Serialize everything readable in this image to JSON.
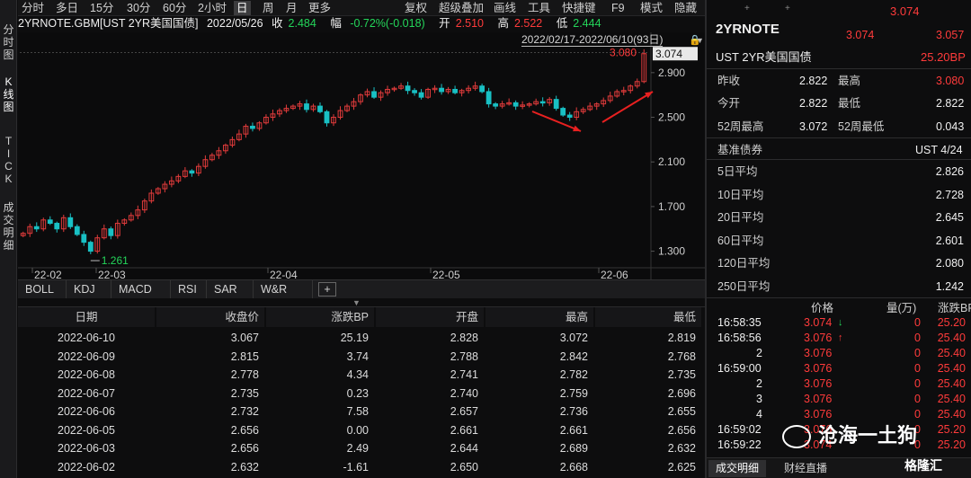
{
  "left_tabs": [
    "分时图",
    "K线图",
    "TICK",
    "成交明细"
  ],
  "toolbar": {
    "periods": [
      "分时",
      "多日",
      "15分",
      "30分",
      "60分",
      "2小时",
      "日",
      "周",
      "月",
      "更多"
    ],
    "selected": "日",
    "right": [
      "复权",
      "超级叠加",
      "画线",
      "工具",
      "快捷键",
      "F9",
      "模式",
      "隐藏"
    ]
  },
  "info": {
    "symbol": "2YRNOTE.GBM[UST 2YR美国国债]",
    "date": "2022/05/26",
    "close_label": "收",
    "close": "2.484",
    "chg_label": "幅",
    "chg": "-0.72%(-0.018)",
    "open_label": "开",
    "open": "2.510",
    "high_label": "高",
    "high": "2.522",
    "low_label": "低",
    "low": "2.444"
  },
  "chart_data": {
    "type": "candlestick",
    "range": "2022/02/17-2022/06/10(93日)",
    "y_ticks": [
      "2.900",
      "2.500",
      "2.100",
      "1.700",
      "1.300"
    ],
    "x_ticks": [
      "22-02",
      "22-03",
      "22-04",
      "22-05",
      "22-06"
    ],
    "last_price": "3.074",
    "ref_price": "3.080",
    "low_marker": "1.261",
    "closes": [
      1.46,
      1.52,
      1.5,
      1.58,
      1.55,
      1.5,
      1.6,
      1.52,
      1.45,
      1.38,
      1.3,
      1.42,
      1.5,
      1.44,
      1.55,
      1.58,
      1.62,
      1.67,
      1.75,
      1.82,
      1.86,
      1.9,
      1.93,
      1.97,
      2.02,
      2.0,
      2.06,
      2.12,
      2.16,
      2.2,
      2.25,
      2.3,
      2.35,
      2.42,
      2.4,
      2.45,
      2.5,
      2.53,
      2.56,
      2.58,
      2.6,
      2.62,
      2.57,
      2.6,
      2.55,
      2.45,
      2.5,
      2.56,
      2.6,
      2.64,
      2.7,
      2.73,
      2.68,
      2.72,
      2.75,
      2.76,
      2.78,
      2.74,
      2.72,
      2.68,
      2.75,
      2.76,
      2.73,
      2.75,
      2.72,
      2.74,
      2.76,
      2.78,
      2.73,
      2.62,
      2.6,
      2.62,
      2.63,
      2.6,
      2.61,
      2.62,
      2.64,
      2.63,
      2.66,
      2.58,
      2.52,
      2.5,
      2.55,
      2.57,
      2.6,
      2.62,
      2.65,
      2.69,
      2.73,
      2.74,
      2.78,
      2.82,
      3.07
    ]
  },
  "indicators": [
    "BOLL",
    "KDJ",
    "MACD",
    "RSI",
    "SAR",
    "W&R",
    "+"
  ],
  "table": {
    "headers": [
      "日期",
      "收盘价",
      "涨跌BP",
      "开盘",
      "最高",
      "最低"
    ],
    "rows": [
      [
        "2022-06-10",
        "3.067",
        "25.19",
        "2.828",
        "3.072",
        "2.819"
      ],
      [
        "2022-06-09",
        "2.815",
        "3.74",
        "2.788",
        "2.842",
        "2.768"
      ],
      [
        "2022-06-08",
        "2.778",
        "4.34",
        "2.741",
        "2.782",
        "2.735"
      ],
      [
        "2022-06-07",
        "2.735",
        "0.23",
        "2.740",
        "2.759",
        "2.696"
      ],
      [
        "2022-06-06",
        "2.732",
        "7.58",
        "2.657",
        "2.736",
        "2.655"
      ],
      [
        "2022-06-05",
        "2.656",
        "0.00",
        "2.661",
        "2.661",
        "2.656"
      ],
      [
        "2022-06-03",
        "2.656",
        "2.49",
        "2.644",
        "2.689",
        "2.632"
      ],
      [
        "2022-06-02",
        "2.632",
        "-1.61",
        "2.650",
        "2.668",
        "2.625"
      ]
    ]
  },
  "quote": {
    "top_price": "3.074",
    "name": "2YRNOTE",
    "p1": "3.074",
    "p2": "3.057",
    "desc": "UST 2YR美国国债",
    "change_bp": "25.20BP",
    "rows": [
      [
        "昨收",
        "2.822",
        "最高",
        "3.080"
      ],
      [
        "今开",
        "2.822",
        "最低",
        "2.822"
      ],
      [
        "52周最高",
        "3.072",
        "52周最低",
        "0.043"
      ]
    ],
    "bench_label": "基准债券",
    "bench": "UST 4/24",
    "avgs": [
      [
        "5日平均",
        "2.826"
      ],
      [
        "10日平均",
        "2.728"
      ],
      [
        "20日平均",
        "2.645"
      ],
      [
        "60日平均",
        "2.601"
      ],
      [
        "120日平均",
        "2.080"
      ],
      [
        "250日平均",
        "1.242"
      ]
    ]
  },
  "ticks": {
    "headers": [
      "价格",
      "量(万)",
      "涨跌BP"
    ],
    "rows": [
      [
        "16:58:35",
        "3.074",
        "0",
        "25.20",
        "down"
      ],
      [
        "16:58:56",
        "3.076",
        "0",
        "25.40",
        "up"
      ],
      [
        "2",
        "3.076",
        "0",
        "25.40",
        ""
      ],
      [
        "16:59:00",
        "3.076",
        "0",
        "25.40",
        ""
      ],
      [
        "2",
        "3.076",
        "0",
        "25.40",
        ""
      ],
      [
        "3",
        "3.076",
        "0",
        "25.40",
        ""
      ],
      [
        "4",
        "3.076",
        "0",
        "25.40",
        ""
      ],
      [
        "16:59:02",
        "3.076",
        "0",
        "25.20",
        ""
      ],
      [
        "16:59:22",
        "3.074",
        "0",
        "25.20",
        ""
      ]
    ]
  },
  "bottom_tabs": [
    "成交明细",
    "财经直播"
  ],
  "watermark": "沧海一土狗",
  "watermark2": "格隆汇"
}
